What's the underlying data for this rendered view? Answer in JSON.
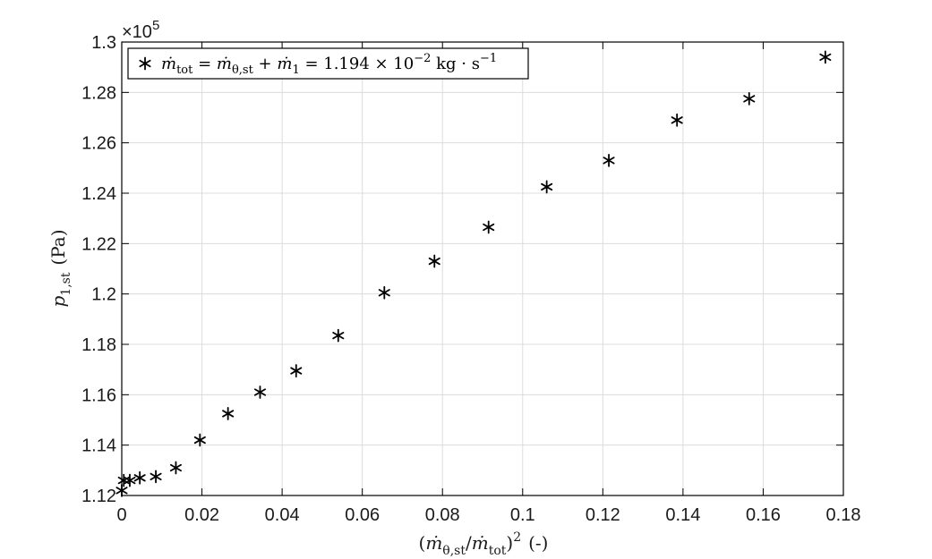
{
  "chart_data": {
    "type": "scatter",
    "xlabel_parts": {
      "open": "(",
      "mdot": "ṁ",
      "sub_theta_st": "θ,st",
      "slash": "/",
      "sub_tot": "tot",
      "close": ")",
      "power": "2",
      "unit": "(-)"
    },
    "ylabel_parts": {
      "p": "p",
      "sub": "1,st",
      "unit": "(Pa)"
    },
    "y_exponent": {
      "prefix": "×10",
      "power": "5"
    },
    "xlim": [
      0,
      0.18
    ],
    "ylim": [
      112000,
      130000
    ],
    "x_ticks": [
      0,
      0.02,
      0.04,
      0.06,
      0.08,
      0.1,
      0.12,
      0.14,
      0.16,
      0.18
    ],
    "x_tick_labels": [
      "0",
      "0.02",
      "0.04",
      "0.06",
      "0.08",
      "0.1",
      "0.12",
      "0.14",
      "0.16",
      "0.18"
    ],
    "y_ticks": [
      112000,
      114000,
      116000,
      118000,
      120000,
      122000,
      124000,
      126000,
      128000,
      130000
    ],
    "y_tick_labels": [
      "1.12",
      "1.14",
      "1.16",
      "1.18",
      "1.2",
      "1.22",
      "1.24",
      "1.26",
      "1.28",
      "1.3"
    ],
    "grid": true,
    "legend_position": "top-left",
    "marker": "asterisk",
    "marker_color": "#000000",
    "series": [
      {
        "legend_parts": {
          "mdot1": "ṁ",
          "sub1": "tot",
          "eq1": " = ",
          "mdot2": "ṁ",
          "sub2": "θ,st",
          "plus": " + ",
          "mdot3": "ṁ",
          "sub3": "1",
          "eq2": " = 1.194 × 10",
          "exp1": "−2",
          "units": " kg · s",
          "exp2": "−1"
        },
        "x": [
          0.0,
          0.0005,
          0.002,
          0.0045,
          0.0085,
          0.0135,
          0.0195,
          0.0265,
          0.0345,
          0.0435,
          0.054,
          0.0655,
          0.078,
          0.0915,
          0.106,
          0.1215,
          0.1385,
          0.1565,
          0.1755
        ],
        "y": [
          112200,
          112600,
          112600,
          112700,
          112750,
          113100,
          114200,
          115250,
          116100,
          116950,
          118350,
          120050,
          121300,
          122650,
          124250,
          125300,
          126900,
          127750,
          129400
        ]
      }
    ]
  }
}
